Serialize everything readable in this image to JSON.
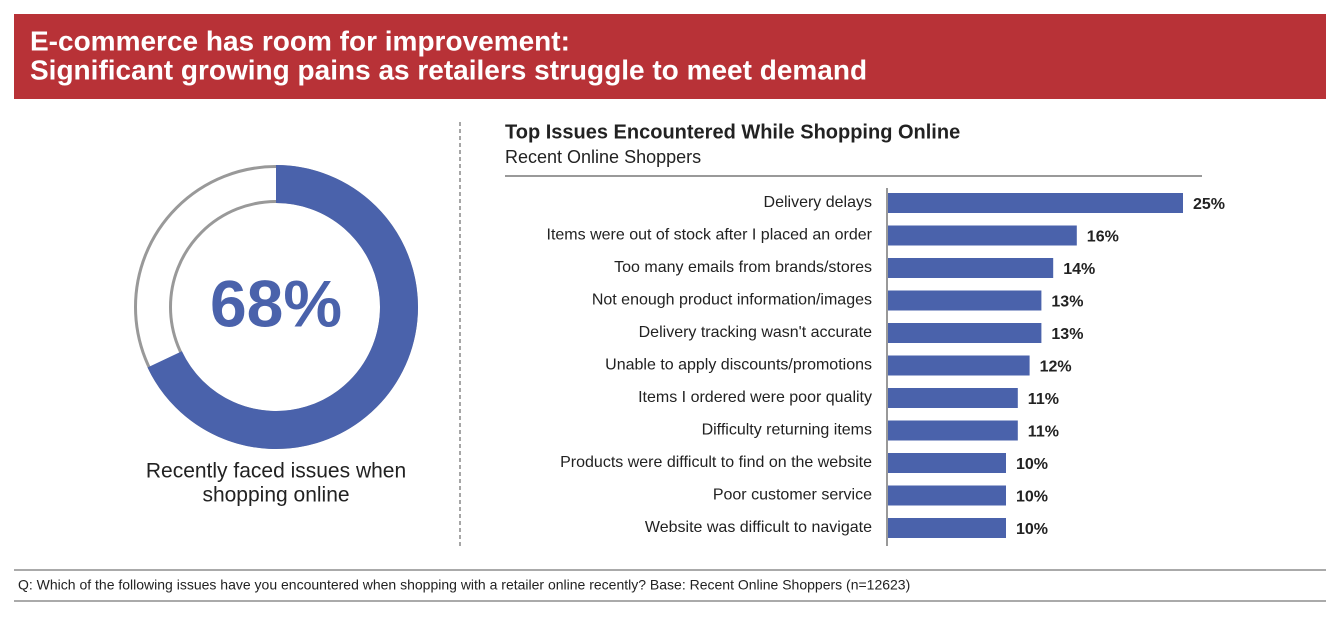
{
  "header": {
    "title": [
      "E-commerce has room for improvement:",
      "Significant growing pains as retailers struggle to meet demand"
    ]
  },
  "chart_data": [
    {
      "type": "donut",
      "values": [
        68
      ],
      "value_labels": [
        "68%"
      ],
      "color": "#4a62ab",
      "caption": [
        "Recently faced issues when",
        "shopping online"
      ]
    },
    {
      "type": "hbar",
      "title": "Top Issues Encountered While Shopping Online",
      "subtitle": "Recent Online Shoppers",
      "categories": [
        "Delivery delays",
        "Items were out of stock after I placed an order",
        "Too many emails from brands/stores",
        "Not enough product information/images",
        "Delivery tracking wasn't accurate",
        "Unable to apply discounts/promotions",
        "Items I ordered were poor quality",
        "Difficulty returning items",
        "Products were difficult to find on the website",
        "Poor customer service",
        "Website was difficult to navigate"
      ],
      "values": [
        25,
        16,
        14,
        13,
        13,
        12,
        11,
        11,
        10,
        10,
        10
      ],
      "value_labels": [
        "25%",
        "16%",
        "14%",
        "13%",
        "13%",
        "12%",
        "11%",
        "11%",
        "10%",
        "10%",
        "10%"
      ],
      "color": "#4a62ab"
    }
  ],
  "footnote": "Q: Which of the following issues have you encountered when shopping with a retailer online recently? Base: Recent Online Shoppers (n=12623)"
}
